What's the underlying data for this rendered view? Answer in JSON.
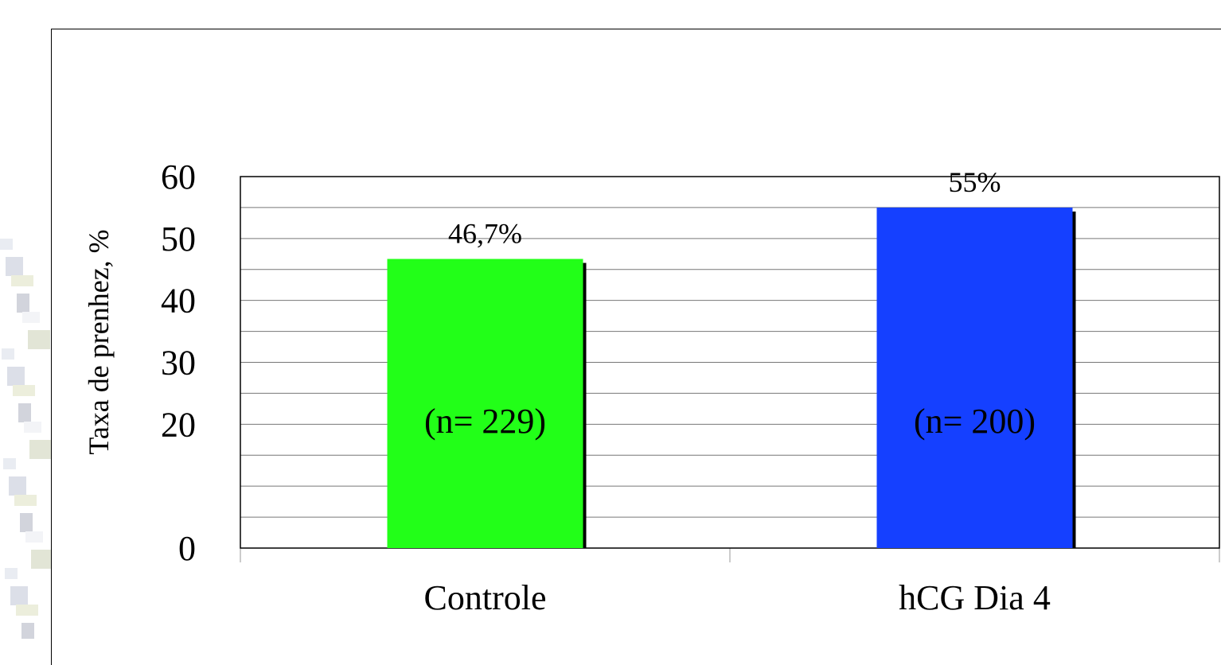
{
  "chart_data": {
    "type": "bar",
    "ylabel": "Taxa de prenhez,  %",
    "ylim": [
      0,
      60
    ],
    "yticks": [
      0,
      20,
      30,
      40,
      50,
      60
    ],
    "grid": true,
    "categories": [
      "Controle",
      "hCG Dia 4"
    ],
    "values": [
      46.7,
      55
    ],
    "value_labels": [
      "46,7%",
      "55%"
    ],
    "n_labels": [
      "(n= 229)",
      "(n= 200)"
    ],
    "colors": [
      "#22ff18",
      "#1540ff"
    ]
  }
}
